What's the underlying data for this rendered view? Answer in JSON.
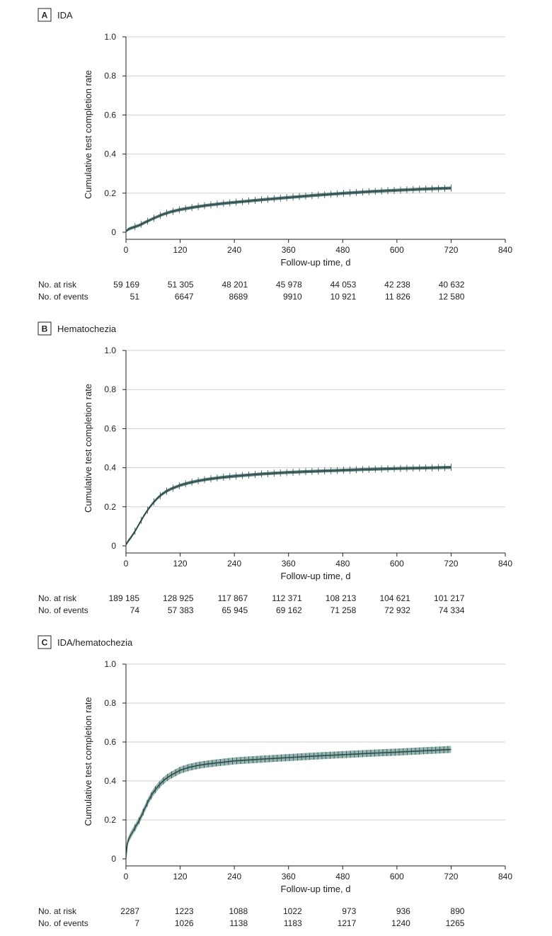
{
  "chart_data": [
    {
      "type": "line",
      "panel_letter": "A",
      "title": "IDA",
      "xlabel": "Follow-up time, d",
      "ylabel": "Cumulative test completion rate",
      "xlim": [
        0,
        840
      ],
      "ylim": [
        0,
        1.0
      ],
      "x_ticks": [
        "0",
        "120",
        "240",
        "360",
        "480",
        "600",
        "720",
        "840"
      ],
      "y_ticks": [
        "0",
        "0.2",
        "0.4",
        "0.6",
        "0.8",
        "1.0"
      ],
      "grid": "horizontal",
      "series": [
        {
          "name": "Cumulative test completion rate",
          "color": "#2e4a4a",
          "band_color": "#3f6e68",
          "x": [
            0,
            5,
            10,
            20,
            30,
            40,
            60,
            80,
            100,
            120,
            150,
            180,
            210,
            240,
            300,
            360,
            420,
            480,
            540,
            600,
            660,
            720
          ],
          "y": [
            0.003,
            0.015,
            0.02,
            0.028,
            0.036,
            0.048,
            0.07,
            0.09,
            0.105,
            0.116,
            0.128,
            0.138,
            0.146,
            0.153,
            0.166,
            0.178,
            0.189,
            0.199,
            0.208,
            0.215,
            0.221,
            0.226
          ],
          "band_halfwidth": 0.008
        }
      ],
      "risk_table": {
        "row_labels": [
          "No. at risk",
          "No. of events"
        ],
        "times": [
          0,
          120,
          240,
          360,
          480,
          600,
          720
        ],
        "at_risk": [
          "59 169",
          "51 305",
          "48 201",
          "45 978",
          "44 053",
          "42 238",
          "40 632"
        ],
        "events": [
          "51",
          "6647",
          "8689",
          "9910",
          "10 921",
          "11 826",
          "12 580"
        ]
      }
    },
    {
      "type": "line",
      "panel_letter": "B",
      "title": "Hematochezia",
      "xlabel": "Follow-up time, d",
      "ylabel": "Cumulative test completion rate",
      "xlim": [
        0,
        840
      ],
      "ylim": [
        0,
        1.0
      ],
      "x_ticks": [
        "0",
        "120",
        "240",
        "360",
        "480",
        "600",
        "720",
        "840"
      ],
      "y_ticks": [
        "0",
        "0.2",
        "0.4",
        "0.6",
        "0.8",
        "1.0"
      ],
      "grid": "horizontal",
      "series": [
        {
          "name": "Cumulative test completion rate",
          "color": "#2e4a4a",
          "band_color": "#3f6e68",
          "x": [
            0,
            5,
            10,
            20,
            30,
            40,
            50,
            60,
            70,
            80,
            90,
            100,
            120,
            140,
            160,
            180,
            210,
            240,
            300,
            360,
            420,
            480,
            540,
            600,
            660,
            720
          ],
          "y": [
            0.005,
            0.025,
            0.04,
            0.075,
            0.115,
            0.155,
            0.19,
            0.22,
            0.245,
            0.265,
            0.28,
            0.292,
            0.31,
            0.323,
            0.333,
            0.341,
            0.35,
            0.357,
            0.368,
            0.376,
            0.382,
            0.387,
            0.392,
            0.396,
            0.399,
            0.402
          ],
          "band_halfwidth": 0.008
        }
      ],
      "risk_table": {
        "row_labels": [
          "No. at risk",
          "No. of events"
        ],
        "times": [
          0,
          120,
          240,
          360,
          480,
          600,
          720
        ],
        "at_risk": [
          "189 185",
          "128 925",
          "117 867",
          "112 371",
          "108 213",
          "104 621",
          "101 217"
        ],
        "events": [
          "74",
          "57 383",
          "65 945",
          "69 162",
          "71 258",
          "72 932",
          "74 334"
        ]
      }
    },
    {
      "type": "line",
      "panel_letter": "C",
      "title": "IDA/hematochezia",
      "xlabel": "Follow-up time, d",
      "ylabel": "Cumulative test completion rate",
      "xlim": [
        0,
        840
      ],
      "ylim": [
        0,
        1.0
      ],
      "x_ticks": [
        "0",
        "120",
        "240",
        "360",
        "480",
        "600",
        "720",
        "840"
      ],
      "y_ticks": [
        "0",
        "0.2",
        "0.4",
        "0.6",
        "0.8",
        "1.0"
      ],
      "grid": "horizontal",
      "series": [
        {
          "name": "Cumulative test completion rate",
          "color": "#2e4a4a",
          "band_color": "#7fa8a2",
          "x": [
            0,
            3,
            6,
            10,
            20,
            30,
            40,
            50,
            60,
            70,
            80,
            90,
            100,
            120,
            140,
            160,
            180,
            210,
            240,
            300,
            360,
            420,
            480,
            540,
            600,
            660,
            720
          ],
          "y": [
            0.005,
            0.08,
            0.1,
            0.12,
            0.16,
            0.2,
            0.25,
            0.3,
            0.34,
            0.37,
            0.395,
            0.415,
            0.43,
            0.455,
            0.47,
            0.48,
            0.487,
            0.495,
            0.503,
            0.512,
            0.52,
            0.528,
            0.535,
            0.542,
            0.548,
            0.555,
            0.562
          ],
          "band_halfwidth": 0.018
        }
      ],
      "risk_table": {
        "row_labels": [
          "No. at risk",
          "No. of events"
        ],
        "times": [
          0,
          120,
          240,
          360,
          480,
          600,
          720
        ],
        "at_risk": [
          "2287",
          "1223",
          "1088",
          "1022",
          "973",
          "936",
          "890"
        ],
        "events": [
          "7",
          "1026",
          "1138",
          "1183",
          "1217",
          "1240",
          "1265"
        ]
      }
    }
  ]
}
